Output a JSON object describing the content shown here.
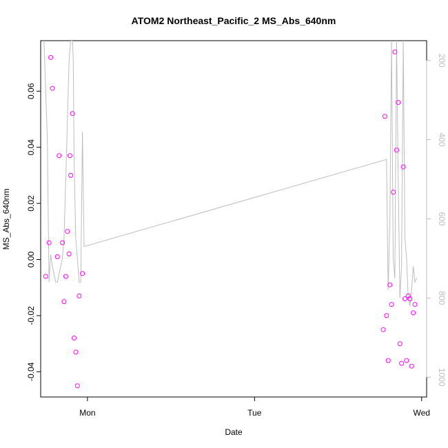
{
  "chart_data": {
    "type": "scatter",
    "title": "ATOM2 Northeast_Pacific_2 MS_Abs_640nm",
    "xlabel": "Date",
    "ylabel": "MS_Abs_640nm",
    "xlim": [
      -0.28,
      2.03
    ],
    "ylim": [
      -0.049,
      0.078
    ],
    "x_ticks": [
      {
        "value": 0,
        "label": "Mon"
      },
      {
        "value": 1,
        "label": "Tue"
      },
      {
        "value": 2,
        "label": "Wed"
      }
    ],
    "y_ticks": [
      {
        "value": -0.04,
        "label": "-0.04"
      },
      {
        "value": -0.02,
        "label": "-0.02"
      },
      {
        "value": 0.0,
        "label": "0.00"
      },
      {
        "value": 0.02,
        "label": "0.02"
      },
      {
        "value": 0.04,
        "label": "0.04"
      },
      {
        "value": 0.06,
        "label": "0.06"
      }
    ],
    "right_axis": {
      "ylim": [
        1050,
        150
      ],
      "ticks": [
        {
          "value": 200,
          "label": "200"
        },
        {
          "value": 400,
          "label": "400"
        },
        {
          "value": 600,
          "label": "600"
        },
        {
          "value": 800,
          "label": "800"
        },
        {
          "value": 1000,
          "label": "1000"
        }
      ],
      "color": "#bdbdbd"
    },
    "grid": false,
    "series": [
      {
        "type": "scatter",
        "color": "#ff00ff",
        "x": [
          -0.25,
          -0.23,
          -0.22,
          -0.21,
          -0.18,
          -0.17,
          -0.15,
          -0.14,
          -0.13,
          -0.12,
          -0.11,
          -0.105,
          -0.1,
          -0.09,
          -0.08,
          -0.07,
          -0.06,
          -0.05,
          -0.03,
          1.77,
          1.78,
          1.79,
          1.8,
          1.81,
          1.82,
          1.83,
          1.84,
          1.85,
          1.86,
          1.87,
          1.88,
          1.89,
          1.9,
          1.91,
          1.92,
          1.93,
          1.94,
          1.95,
          1.96
        ],
        "y": [
          -0.006,
          0.006,
          0.072,
          0.061,
          0.001,
          0.037,
          0.006,
          -0.015,
          -0.006,
          0.01,
          0.002,
          0.037,
          0.03,
          0.052,
          -0.028,
          -0.033,
          -0.045,
          -0.013,
          -0.005,
          -0.025,
          0.051,
          -0.02,
          -0.036,
          -0.009,
          -0.016,
          0.024,
          0.074,
          0.039,
          0.056,
          -0.03,
          -0.037,
          0.033,
          -0.014,
          -0.036,
          -0.013,
          -0.014,
          -0.038,
          -0.019,
          -0.016
        ]
      },
      {
        "type": "line",
        "color": "#bdbdbd",
        "axis": "right",
        "x": [
          -0.26,
          -0.24,
          -0.23,
          -0.22,
          -0.21,
          -0.2,
          -0.19,
          -0.18,
          -0.17,
          -0.16,
          -0.15,
          -0.14,
          -0.13,
          -0.12,
          -0.11,
          -0.1,
          -0.09,
          -0.085,
          -0.08,
          -0.07,
          -0.06,
          -0.05,
          -0.04,
          -0.03,
          -0.02,
          1.79,
          1.8,
          1.81,
          1.82,
          1.83,
          1.84,
          1.85,
          1.86,
          1.87,
          1.88,
          1.89,
          1.9,
          1.91,
          1.92,
          1.93,
          1.94,
          1.95,
          1.96,
          1.97
        ],
        "y": [
          150,
          400,
          760,
          690,
          720,
          740,
          760,
          760,
          740,
          720,
          700,
          650,
          500,
          350,
          200,
          150,
          150,
          200,
          450,
          650,
          700,
          760,
          760,
          380,
          670,
          450,
          780,
          600,
          150,
          700,
          750,
          150,
          500,
          800,
          720,
          150,
          650,
          700,
          800,
          820,
          780,
          720,
          760,
          750
        ]
      }
    ]
  }
}
